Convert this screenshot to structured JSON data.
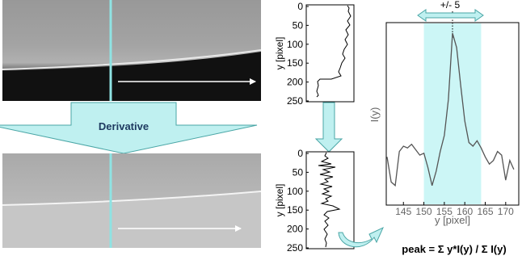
{
  "colors": {
    "cyan": "#8fe3e3",
    "cyan_fill": "#ccf6f6",
    "arrow_fill": "#bff0f0",
    "arrow_stroke": "#4aa6a6"
  },
  "derivative_label": "Derivative",
  "width_label": "+/- 5",
  "formula": "peak = Σ y*I(y) / Σ I(y)",
  "plot_top": {
    "ylabel": "y [pixel]",
    "yticks": [
      "0",
      "50",
      "100",
      "150",
      "200",
      "250"
    ]
  },
  "plot_bottom": {
    "ylabel": "y [pixel]",
    "yticks": [
      "0",
      "50",
      "100",
      "150",
      "200",
      "250"
    ]
  },
  "chart_data": {
    "type": "line",
    "xlabel": "y [pixel]",
    "ylabel": "I(y)",
    "xlim": [
      141,
      173
    ],
    "xticks": [
      "145",
      "150",
      "155",
      "160",
      "165",
      "170"
    ],
    "highlight_range": [
      150,
      164
    ],
    "peak_x": 157,
    "x": [
      141,
      142,
      143,
      144,
      145,
      146,
      147,
      148,
      149,
      150,
      151,
      152,
      153,
      154,
      155,
      156,
      157,
      158,
      159,
      160,
      161,
      162,
      163,
      164,
      165,
      166,
      167,
      168,
      169,
      170,
      171,
      172
    ],
    "values": [
      0.26,
      0.12,
      0.1,
      0.29,
      0.32,
      0.31,
      0.33,
      0.3,
      0.27,
      0.28,
      0.2,
      0.1,
      0.18,
      0.29,
      0.38,
      0.58,
      0.95,
      0.87,
      0.66,
      0.46,
      0.34,
      0.32,
      0.35,
      0.31,
      0.26,
      0.22,
      0.24,
      0.29,
      0.27,
      0.13,
      0.24,
      0.19
    ]
  }
}
